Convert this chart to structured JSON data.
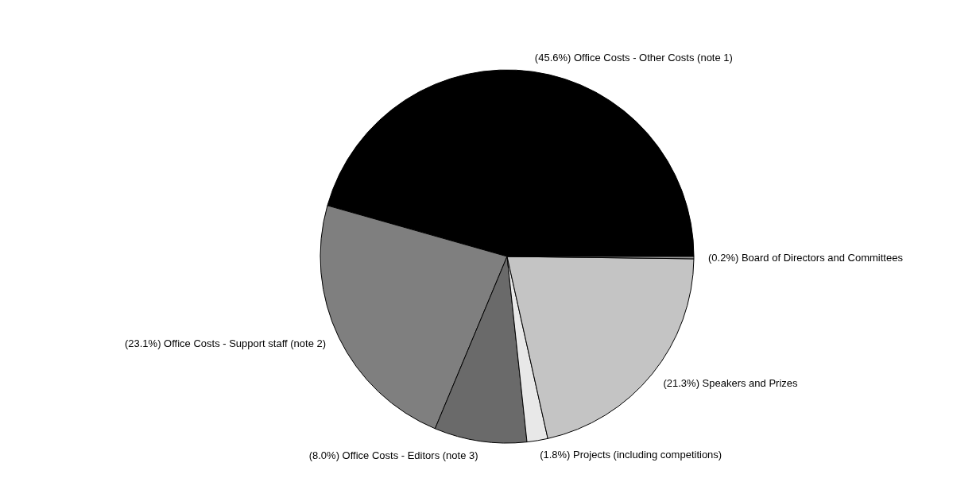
{
  "chart_data": {
    "type": "pie",
    "categories": [
      "Office Costs - Other Costs (note 1)",
      "Office Costs - Support staff (note 2)",
      "Office Costs - Editors (note 3)",
      "Projects (including competitions)",
      "Speakers and Prizes",
      "Board of Directors and Committees"
    ],
    "values": [
      45.6,
      23.1,
      8.0,
      1.8,
      21.3,
      0.2
    ],
    "value_labels": [
      "(45.6%)",
      "(23.1%)",
      "(8.0%)",
      "(1.8%)",
      "(21.3%)",
      "(0.2%)"
    ],
    "colors": [
      "#000000",
      "#7f7f7f",
      "#6a6a6a",
      "#e8e8e8",
      "#c4c4c4",
      "#999999"
    ],
    "legend": false
  }
}
